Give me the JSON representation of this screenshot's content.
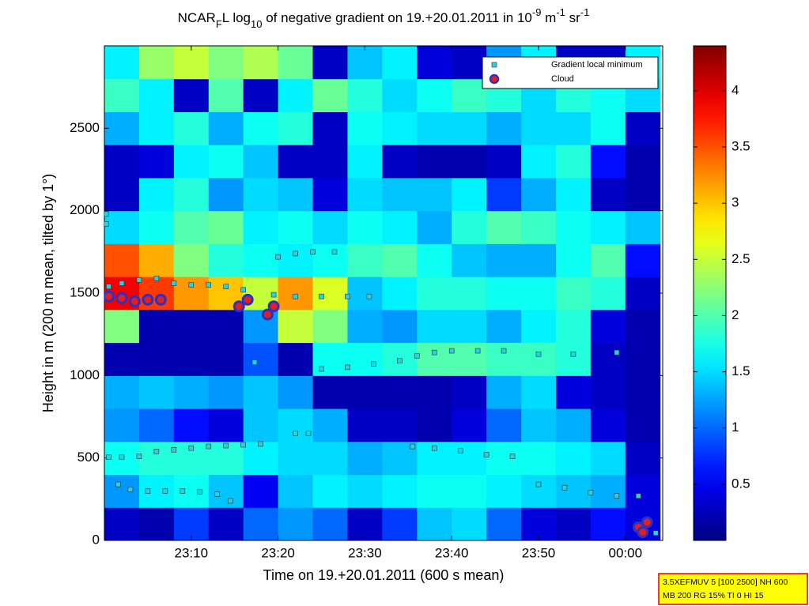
{
  "chart_data": {
    "type": "heatmap",
    "title": [
      {
        "text": "NCAR"
      },
      {
        "text": "F",
        "script": "sub"
      },
      {
        "text": "L log"
      },
      {
        "text": "10",
        "script": "sub"
      },
      {
        "text": " of negative gradient on 19.+20.01.2011 in 10"
      },
      {
        "text": "-9",
        "script": "sup"
      },
      {
        "text": " m"
      },
      {
        "text": "-1",
        "script": "sup"
      },
      {
        "text": " sr"
      },
      {
        "text": "-1",
        "script": "sup"
      }
    ],
    "x_label": "Time on 19.+20.01.2011 (600 s mean)",
    "y_label": "Height in m (200 m mean, tilted by 1°)",
    "xlim": [
      0,
      64.3
    ],
    "xticks": [
      {
        "value": 10,
        "label": "23:10"
      },
      {
        "value": 20,
        "label": "23:20"
      },
      {
        "value": 30,
        "label": "23:30"
      },
      {
        "value": 40,
        "label": "23:40"
      },
      {
        "value": 50,
        "label": "23:50"
      },
      {
        "value": 60,
        "label": "00:00"
      }
    ],
    "ylim": [
      0,
      3000
    ],
    "yticks": [
      0,
      500,
      1000,
      1500,
      2000,
      2500
    ],
    "x_bins": [
      0,
      4,
      8,
      12,
      16,
      20,
      24,
      28,
      32,
      36,
      40,
      44,
      48,
      52,
      56,
      60,
      64
    ],
    "y_bins": [
      0,
      200,
      400,
      600,
      800,
      1000,
      1200,
      1400,
      1600,
      1800,
      2000,
      2200,
      2400,
      2600,
      2800,
      3000
    ],
    "z": [
      [
        0.3,
        0.2,
        0.8,
        0.3,
        1.0,
        1.2,
        1.0,
        0.3,
        0.8,
        1.4,
        1.5,
        1.0,
        0.4,
        0.3,
        0.6,
        0.4
      ],
      [
        1.2,
        1.6,
        1.7,
        1.4,
        0.5,
        1.4,
        1.6,
        1.5,
        1.6,
        1.7,
        1.7,
        1.6,
        1.5,
        1.4,
        1.3,
        0.4
      ],
      [
        1.7,
        1.8,
        1.8,
        1.8,
        1.6,
        1.5,
        1.5,
        1.3,
        1.4,
        1.6,
        1.6,
        1.7,
        1.7,
        1.6,
        1.5,
        0.3
      ],
      [
        1.2,
        1.0,
        0.6,
        0.4,
        1.4,
        1.5,
        1.3,
        0.3,
        0.3,
        0.2,
        0.4,
        1.0,
        1.4,
        1.3,
        0.4,
        0.2
      ],
      [
        1.3,
        1.4,
        1.3,
        1.2,
        1.4,
        1.2,
        0.2,
        0.2,
        0.2,
        0.2,
        0.3,
        1.3,
        1.5,
        0.4,
        0.3,
        0.2
      ],
      [
        0.2,
        0.2,
        0.2,
        0.2,
        0.9,
        0.2,
        1.7,
        1.7,
        1.8,
        2.0,
        2.0,
        1.9,
        1.9,
        1.8,
        0.3,
        0.2
      ],
      [
        2.2,
        0.2,
        0.2,
        0.2,
        1.2,
        2.5,
        2.2,
        1.3,
        1.2,
        1.5,
        1.5,
        1.3,
        1.6,
        1.8,
        0.4,
        0.2
      ],
      [
        3.9,
        3.6,
        3.2,
        3.0,
        2.5,
        3.2,
        2.6,
        1.4,
        1.6,
        1.8,
        1.8,
        1.7,
        1.7,
        1.9,
        1.8,
        0.3
      ],
      [
        3.5,
        3.1,
        2.2,
        1.8,
        1.7,
        1.6,
        1.7,
        1.9,
        2.0,
        1.7,
        1.4,
        1.3,
        1.3,
        1.7,
        2.0,
        0.6
      ],
      [
        1.5,
        1.7,
        2.0,
        2.1,
        1.6,
        1.7,
        1.5,
        1.7,
        1.6,
        1.3,
        1.8,
        2.0,
        1.9,
        1.7,
        1.6,
        1.4
      ],
      [
        0.3,
        1.6,
        1.8,
        1.2,
        1.5,
        1.4,
        0.4,
        1.5,
        1.4,
        1.4,
        1.6,
        0.8,
        1.3,
        1.6,
        0.3,
        0.2
      ],
      [
        0.3,
        0.4,
        1.6,
        1.7,
        1.4,
        0.3,
        0.3,
        1.6,
        0.3,
        0.2,
        0.2,
        0.3,
        1.6,
        1.8,
        0.6,
        0.2
      ],
      [
        1.3,
        1.6,
        1.8,
        1.3,
        1.7,
        1.8,
        0.3,
        1.7,
        1.6,
        1.5,
        1.5,
        1.3,
        1.5,
        1.5,
        1.7,
        0.3
      ],
      [
        1.9,
        1.6,
        0.3,
        2.0,
        0.3,
        1.6,
        2.1,
        1.8,
        1.5,
        1.7,
        1.9,
        1.8,
        1.5,
        1.8,
        1.7,
        1.5
      ],
      [
        1.6,
        2.3,
        2.5,
        2.2,
        2.4,
        2.1,
        0.3,
        1.4,
        1.6,
        0.4,
        0.3,
        1.2,
        1.6,
        0.3,
        0.3,
        1.6
      ]
    ],
    "clim": [
      0,
      4.4
    ],
    "colorbar_ticks": [
      0.5,
      1,
      1.5,
      2,
      2.5,
      3,
      3.5,
      4
    ],
    "colormap": "jet",
    "series": [
      {
        "name": "Gradient local minimum",
        "marker": "square",
        "color": "#22d3e0",
        "x": [
          0.5,
          2,
          4,
          6,
          8,
          10,
          12,
          14,
          16,
          18,
          1.6,
          3,
          5,
          7,
          9,
          11,
          13,
          14.5,
          0.5,
          2,
          4,
          6,
          8,
          10,
          12,
          14,
          16,
          17.3,
          19.5,
          22,
          25,
          28,
          30.5,
          20,
          22,
          24,
          26.5,
          25,
          28,
          31,
          34,
          36,
          38,
          40,
          43,
          46,
          50,
          54,
          59,
          22,
          23.5,
          35.5,
          38,
          41,
          44,
          47,
          50,
          53,
          56,
          59,
          61.5,
          62,
          63.5,
          0.2,
          0.2
        ],
        "y": [
          505,
          505,
          510,
          540,
          550,
          560,
          570,
          575,
          580,
          585,
          340,
          310,
          300,
          300,
          300,
          295,
          280,
          240,
          1540,
          1560,
          1580,
          1590,
          1560,
          1550,
          1550,
          1540,
          1520,
          1080,
          1490,
          1480,
          1480,
          1480,
          1480,
          1720,
          1740,
          1750,
          1750,
          1040,
          1050,
          1070,
          1090,
          1120,
          1140,
          1150,
          1150,
          1150,
          1130,
          1130,
          1140,
          650,
          650,
          570,
          560,
          545,
          520,
          510,
          340,
          320,
          290,
          270,
          270,
          45,
          45,
          1920,
          1980
        ]
      },
      {
        "name": "Cloud",
        "marker": "circle",
        "color": "#e0201c",
        "edge": "#3030c0",
        "x": [
          0.5,
          2,
          3.5,
          5,
          6.5,
          15.5,
          16.5,
          18.8,
          19.5,
          61.5,
          62.5,
          62
        ],
        "y": [
          1480,
          1470,
          1450,
          1460,
          1460,
          1420,
          1460,
          1370,
          1420,
          80,
          110,
          50
        ]
      }
    ],
    "legend": "upper right",
    "annotations": [
      "3.5XEFMUV 5 [100 2500] NH 600",
      "MB 200 RG 15% TI 0 HI 15"
    ]
  }
}
